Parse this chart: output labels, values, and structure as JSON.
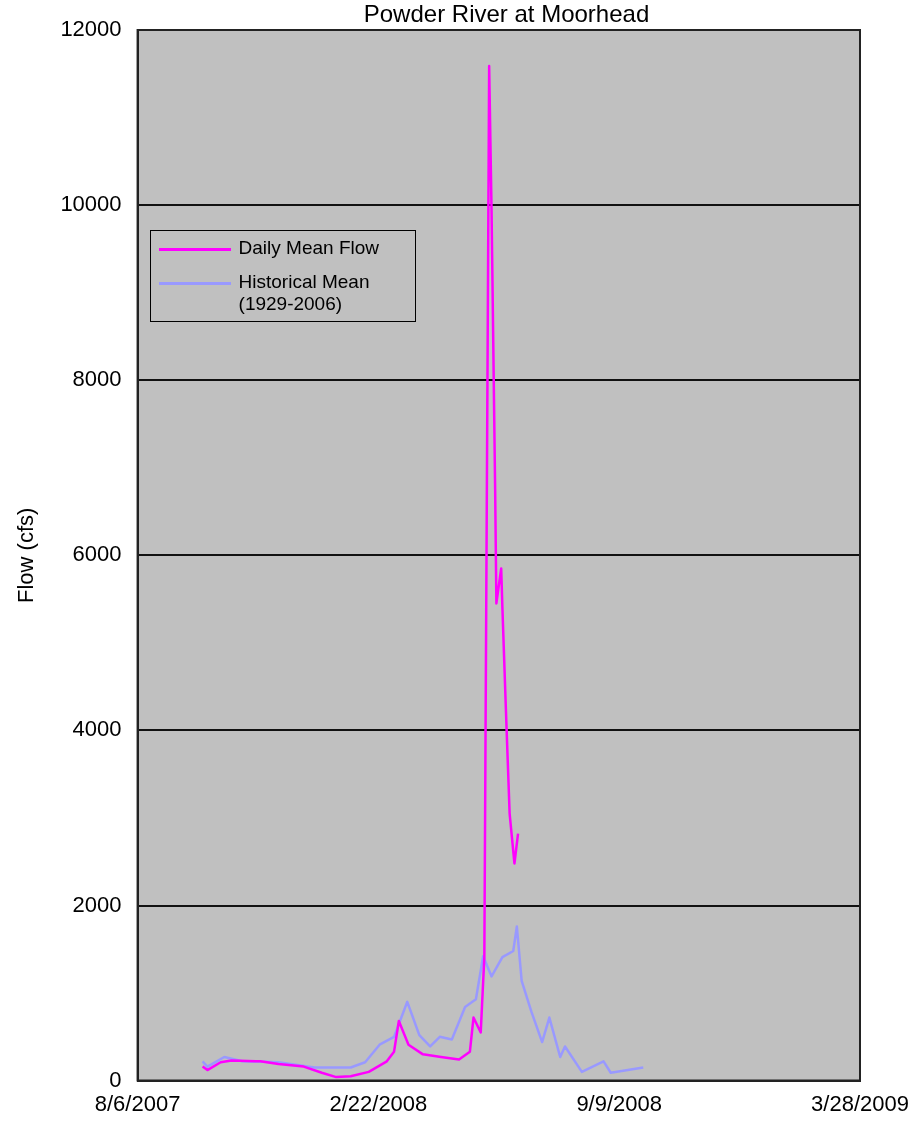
{
  "chart_data": {
    "type": "line",
    "title": "Powder River at Moorhead",
    "ylabel": "Flow (cfs)",
    "ylim": [
      0,
      12000
    ],
    "yticks": [
      0,
      2000,
      4000,
      6000,
      8000,
      10000,
      12000
    ],
    "xlim": [
      "2007-08-06",
      "2009-03-28"
    ],
    "xticks": [
      {
        "value": "2007-08-06",
        "label": "8/6/2007"
      },
      {
        "value": "2008-02-22",
        "label": "2/22/2008"
      },
      {
        "value": "2008-09-09",
        "label": "9/9/2008"
      },
      {
        "value": "2009-03-28",
        "label": "3/28/2009"
      }
    ],
    "grid": "y",
    "legend": "top left",
    "marker": "none",
    "line_style": "solid",
    "series": [
      {
        "name": "Daily Mean Flow",
        "color": "#ff00ff",
        "x": [
          "2007-09-29",
          "2007-10-03",
          "2007-10-14",
          "2007-10-23",
          "2007-11-16",
          "2007-12-01",
          "2007-12-22",
          "2008-01-06",
          "2008-01-18",
          "2008-01-30",
          "2008-02-14",
          "2008-02-29",
          "2008-03-06",
          "2008-03-10",
          "2008-03-18",
          "2008-03-30",
          "2008-04-14",
          "2008-04-29",
          "2008-05-08",
          "2008-05-11",
          "2008-05-17",
          "2008-05-20",
          "2008-05-24",
          "2008-05-26",
          "2008-05-29",
          "2008-05-30",
          "2008-06-03",
          "2008-06-04",
          "2008-06-07",
          "2008-06-10",
          "2008-06-14",
          "2008-06-17"
        ],
        "values": [
          160,
          120,
          210,
          230,
          220,
          190,
          160,
          90,
          40,
          50,
          100,
          220,
          330,
          680,
          410,
          300,
          270,
          240,
          330,
          720,
          550,
          1410,
          11590,
          9930,
          6720,
          5450,
          5850,
          5400,
          4200,
          3050,
          2480,
          2820
        ]
      },
      {
        "name": "Historical Mean (1929-2006)",
        "color": "#9999ff",
        "x": [
          "2007-09-29",
          "2007-10-03",
          "2007-10-17",
          "2007-11-01",
          "2007-12-01",
          "2007-12-31",
          "2008-01-30",
          "2008-02-11",
          "2008-02-23",
          "2008-03-06",
          "2008-03-17",
          "2008-03-27",
          "2008-04-05",
          "2008-04-13",
          "2008-04-23",
          "2008-05-04",
          "2008-05-13",
          "2008-05-19",
          "2008-05-26",
          "2008-06-04",
          "2008-06-13",
          "2008-06-16",
          "2008-06-20",
          "2008-06-28",
          "2008-07-07",
          "2008-07-13",
          "2008-07-22",
          "2008-07-26",
          "2008-08-09",
          "2008-08-27",
          "2008-09-02",
          "2008-09-29"
        ],
        "values": [
          220,
          160,
          270,
          220,
          210,
          150,
          150,
          210,
          410,
          500,
          900,
          520,
          390,
          500,
          470,
          840,
          930,
          1420,
          1190,
          1410,
          1480,
          1760,
          1140,
          790,
          440,
          720,
          270,
          390,
          100,
          220,
          90,
          150
        ]
      }
    ]
  }
}
